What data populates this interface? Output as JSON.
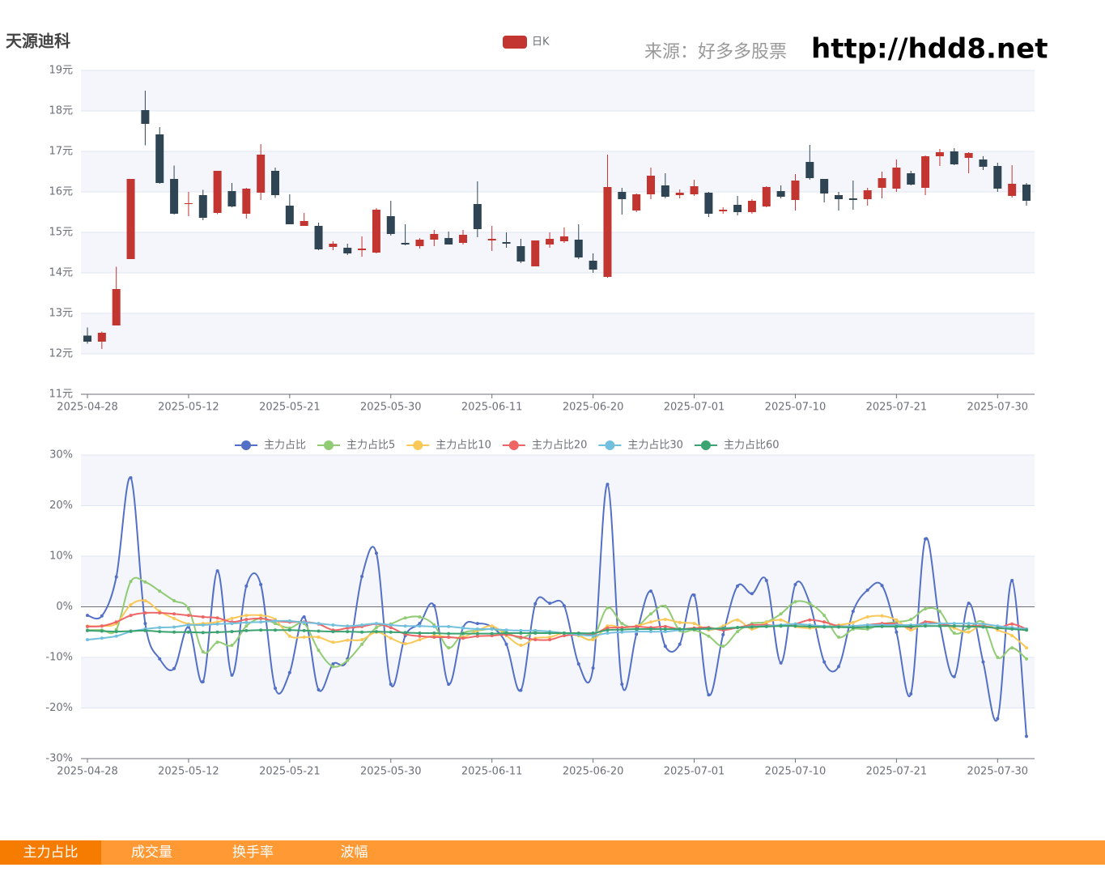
{
  "header": {
    "source": "来源：好多多股票",
    "url": "http://hdd8.net"
  },
  "tabs": [
    "主力占比",
    "成交量",
    "换手率",
    "波幅"
  ],
  "chart_data": [
    {
      "type": "candlestick",
      "title": "天源迪科",
      "categories": [
        "2025-04-28",
        null,
        null,
        null,
        null,
        null,
        null,
        "2025-05-12",
        null,
        null,
        null,
        null,
        null,
        null,
        "2025-05-21",
        null,
        null,
        null,
        null,
        null,
        null,
        "2025-05-30",
        null,
        null,
        null,
        null,
        null,
        null,
        "2025-06-11",
        null,
        null,
        null,
        null,
        null,
        null,
        "2025-06-20",
        null,
        null,
        null,
        null,
        null,
        null,
        "2025-07-01",
        null,
        null,
        null,
        null,
        null,
        null,
        "2025-07-10",
        null,
        null,
        null,
        null,
        null,
        null,
        "2025-07-21",
        null,
        null,
        null,
        null,
        null,
        null,
        "2025-07-30",
        null,
        null
      ],
      "series": [
        {
          "name": "日K",
          "color": "#c23531",
          "down_color": "#2f4554",
          "open": [
            12.45,
            12.3,
            12.7,
            14.34,
            18.02,
            17.42,
            16.32,
            15.7,
            15.92,
            15.48,
            16.02,
            15.46,
            15.98,
            16.52,
            15.66,
            15.16,
            15.16,
            14.64,
            14.62,
            14.56,
            14.5,
            15.4,
            14.74,
            14.66,
            14.82,
            14.86,
            14.74,
            15.7,
            14.8,
            14.76,
            14.66,
            14.16,
            14.7,
            14.78,
            14.82,
            14.3,
            13.9,
            16.0,
            15.54,
            15.94,
            16.16,
            15.92,
            15.94,
            15.98,
            15.52,
            15.68,
            15.5,
            15.64,
            16.02,
            15.8,
            16.74,
            16.32,
            15.92,
            15.84,
            15.82,
            16.1,
            16.08,
            16.46,
            16.1,
            16.88,
            17.0,
            16.84,
            16.8,
            16.64,
            15.9,
            16.18
          ],
          "close": [
            12.3,
            12.52,
            13.6,
            16.32,
            17.68,
            16.22,
            15.46,
            15.72,
            15.36,
            16.52,
            15.64,
            16.08,
            16.92,
            15.92,
            15.2,
            15.28,
            14.58,
            14.72,
            14.48,
            14.6,
            15.56,
            14.96,
            14.7,
            14.82,
            14.96,
            14.7,
            14.94,
            15.08,
            14.84,
            14.72,
            14.28,
            14.8,
            14.84,
            14.9,
            14.38,
            14.08,
            16.12,
            15.82,
            15.94,
            16.4,
            15.88,
            15.98,
            16.14,
            15.46,
            15.56,
            15.5,
            15.78,
            16.12,
            15.88,
            16.28,
            16.34,
            15.96,
            15.82,
            15.8,
            16.04,
            16.34,
            16.6,
            16.18,
            16.88,
            16.98,
            16.68,
            16.96,
            16.62,
            16.08,
            16.2,
            15.78
          ],
          "low": [
            12.25,
            12.12,
            12.7,
            14.34,
            17.15,
            16.2,
            15.44,
            15.4,
            15.3,
            15.45,
            15.62,
            15.34,
            15.8,
            15.85,
            15.2,
            15.16,
            14.56,
            14.56,
            14.44,
            14.4,
            14.48,
            14.92,
            14.68,
            14.6,
            14.66,
            14.7,
            14.7,
            14.88,
            14.54,
            14.62,
            14.24,
            14.16,
            14.62,
            14.74,
            14.34,
            14.0,
            13.88,
            15.44,
            15.5,
            15.82,
            15.84,
            15.84,
            15.9,
            15.38,
            15.46,
            15.42,
            15.46,
            15.62,
            15.84,
            15.54,
            16.3,
            15.74,
            15.54,
            15.56,
            15.66,
            15.84,
            16.0,
            16.16,
            15.92,
            16.64,
            16.66,
            16.46,
            16.54,
            16.0,
            15.86,
            15.66
          ],
          "high": [
            12.65,
            12.55,
            14.15,
            16.32,
            18.5,
            17.6,
            16.65,
            16.0,
            16.05,
            16.52,
            16.22,
            16.1,
            17.18,
            16.6,
            15.94,
            15.48,
            15.24,
            14.78,
            14.72,
            14.9,
            15.6,
            15.78,
            15.2,
            14.86,
            15.06,
            15.02,
            15.06,
            16.26,
            15.16,
            15.0,
            14.84,
            14.8,
            15.0,
            15.12,
            15.2,
            14.48,
            16.92,
            16.1,
            15.96,
            16.6,
            16.46,
            16.06,
            16.3,
            16.0,
            15.62,
            15.9,
            15.82,
            16.14,
            16.16,
            16.44,
            17.16,
            16.32,
            16.0,
            16.28,
            16.1,
            16.5,
            16.8,
            16.52,
            16.9,
            17.06,
            17.08,
            16.98,
            16.88,
            16.72,
            16.66,
            16.22
          ]
        }
      ],
      "ylim": [
        11,
        19
      ],
      "yticks": [
        {
          "value": 11,
          "label": "11元"
        },
        {
          "value": 12,
          "label": "12元"
        },
        {
          "value": 13,
          "label": "13元"
        },
        {
          "value": 14,
          "label": "14元"
        },
        {
          "value": 15,
          "label": "15元"
        },
        {
          "value": 16,
          "label": "16元"
        },
        {
          "value": 17,
          "label": "17元"
        },
        {
          "value": 18,
          "label": "18元"
        },
        {
          "value": 19,
          "label": "19元"
        }
      ],
      "grid": true
    },
    {
      "type": "line",
      "categories": [
        "2025-04-28",
        null,
        null,
        null,
        null,
        null,
        null,
        "2025-05-12",
        null,
        null,
        null,
        null,
        null,
        null,
        "2025-05-21",
        null,
        null,
        null,
        null,
        null,
        null,
        "2025-05-30",
        null,
        null,
        null,
        null,
        null,
        null,
        "2025-06-11",
        null,
        null,
        null,
        null,
        null,
        null,
        "2025-06-20",
        null,
        null,
        null,
        null,
        null,
        null,
        "2025-07-01",
        null,
        null,
        null,
        null,
        null,
        null,
        "2025-07-10",
        null,
        null,
        null,
        null,
        null,
        null,
        "2025-07-21",
        null,
        null,
        null,
        null,
        null,
        null,
        "2025-07-30",
        null,
        null
      ],
      "series": [
        {
          "name": "主力占比",
          "color": "#5470c6",
          "values": [
            -1.7,
            -1.8,
            5.9,
            25.5,
            -3.3,
            -10.3,
            -12.2,
            -4,
            -14.8,
            7.1,
            -13.5,
            4.1,
            4.4,
            -16.1,
            -13,
            -2,
            -16.4,
            -11.3,
            -10.3,
            6,
            10.6,
            -15.3,
            -5.7,
            -3.3,
            0.2,
            -15.3,
            -4.1,
            -3.3,
            -4,
            -7.4,
            -16.5,
            0.6,
            0.7,
            0.2,
            -11.3,
            -12.1,
            24.2,
            -15.3,
            -5.4,
            3.1,
            -7.8,
            -7.4,
            2.3,
            -17.4,
            -5.5,
            4.1,
            2.6,
            5.2,
            -11.1,
            4.4,
            0.7,
            -10.9,
            -11.8,
            -0.9,
            3.3,
            4.2,
            -5,
            -17.2,
            13.4,
            -3.3,
            -13.8,
            0.7,
            -10.9,
            -22.1,
            5.2,
            -25.6
          ]
        },
        {
          "name": "主力占比5",
          "color": "#91cc75",
          "values": [
            -4.6,
            -4.6,
            -4.5,
            5,
            4.9,
            3.1,
            1.2,
            -0.4,
            -8.9,
            -7,
            -7.6,
            -3.8,
            -2.3,
            -3.3,
            -4.2,
            -3.3,
            -8.6,
            -11.8,
            -10.6,
            -7.4,
            -4.1,
            -3.4,
            -2.2,
            -2,
            -3.6,
            -8.1,
            -5.2,
            -4.7,
            -4.4,
            -5,
            -6.2,
            -4.9,
            -4.9,
            -5.2,
            -5.7,
            -6.2,
            -0.2,
            -3.3,
            -3.9,
            -1.4,
            0.1,
            -4.7,
            -4.6,
            -5.8,
            -7.8,
            -4.9,
            -3.3,
            -3,
            -1.4,
            1,
            0.6,
            -1.7,
            -6,
            -4.4,
            -4.4,
            -3.4,
            -3,
            -2.5,
            -0.4,
            -0.9,
            -5.2,
            -4.2,
            -3.1,
            -10,
            -8.1,
            -10.3
          ]
        },
        {
          "name": "主力占比10",
          "color": "#fac858",
          "values": [
            -3.8,
            -3.8,
            -3.3,
            0.4,
            1.2,
            -0.9,
            -2.3,
            -3.4,
            -3.3,
            -3,
            -2.3,
            -1.7,
            -1.7,
            -2.5,
            -5.8,
            -6,
            -6,
            -7,
            -6.6,
            -6.5,
            -5,
            -6.2,
            -7.3,
            -6.5,
            -5.7,
            -6,
            -6,
            -4.7,
            -3.8,
            -5.7,
            -7.6,
            -6.2,
            -6,
            -5.2,
            -5.7,
            -6.5,
            -3.8,
            -4.1,
            -3.8,
            -3,
            -2.5,
            -3.1,
            -3.3,
            -4.6,
            -3.8,
            -2.6,
            -4.4,
            -3.1,
            -2.6,
            -3.9,
            -4.2,
            -3.9,
            -3.6,
            -3.1,
            -2,
            -1.8,
            -2.6,
            -4.6,
            -3,
            -3.3,
            -4.2,
            -5,
            -3.3,
            -4.6,
            -5.7,
            -8.1
          ]
        },
        {
          "name": "主力占比20",
          "color": "#ee6666",
          "values": [
            -3.9,
            -3.8,
            -3,
            -1.7,
            -1.2,
            -1.2,
            -1.4,
            -1.7,
            -2,
            -2.2,
            -3,
            -2.5,
            -2.3,
            -2.8,
            -3,
            -3,
            -3.4,
            -4.6,
            -4.2,
            -3.9,
            -3.4,
            -4.1,
            -5.4,
            -5.8,
            -6,
            -6,
            -6.2,
            -5.8,
            -5.7,
            -5.5,
            -6,
            -6.5,
            -6.5,
            -5.7,
            -5.5,
            -5.4,
            -4.2,
            -4.1,
            -3.9,
            -4.1,
            -3.9,
            -4.4,
            -4.2,
            -4.1,
            -4.6,
            -4.1,
            -3.6,
            -3.6,
            -3.8,
            -3.4,
            -2.6,
            -3,
            -3.8,
            -3.8,
            -3.6,
            -3.3,
            -3.4,
            -4.1,
            -3,
            -3.4,
            -3.8,
            -3.8,
            -3.8,
            -4.2,
            -3.4,
            -4.4
          ]
        },
        {
          "name": "主力占比30",
          "color": "#73c0de",
          "values": [
            -6.5,
            -6.2,
            -5.8,
            -4.9,
            -4.4,
            -4.1,
            -4,
            -3.6,
            -3.6,
            -3.4,
            -3.3,
            -3.1,
            -3,
            -2.8,
            -2.8,
            -3.1,
            -3.3,
            -3.6,
            -3.8,
            -3.6,
            -3.3,
            -3.6,
            -3.8,
            -3.8,
            -3.9,
            -3.9,
            -4.2,
            -4.4,
            -4.4,
            -4.6,
            -4.7,
            -4.7,
            -4.9,
            -5.2,
            -5.5,
            -5.7,
            -5.2,
            -5,
            -4.9,
            -4.9,
            -4.9,
            -4.6,
            -4.4,
            -4.4,
            -4.2,
            -4.1,
            -3.9,
            -3.8,
            -3.6,
            -3.4,
            -3.6,
            -3.8,
            -3.9,
            -3.8,
            -3.6,
            -3.6,
            -3.6,
            -3.6,
            -3.4,
            -3.3,
            -3.3,
            -3.3,
            -3.4,
            -3.8,
            -4.1,
            -4.4
          ]
        },
        {
          "name": "主力占比60",
          "color": "#3ba272",
          "values": [
            -4.7,
            -4.8,
            -4.9,
            -4.8,
            -4.7,
            -4.9,
            -5,
            -5,
            -5.1,
            -5,
            -4.9,
            -4.7,
            -4.6,
            -4.6,
            -4.6,
            -4.7,
            -4.8,
            -4.9,
            -4.9,
            -5,
            -4.9,
            -5,
            -5.1,
            -5.2,
            -5.2,
            -5.3,
            -5.3,
            -5.3,
            -5.3,
            -5.2,
            -5.2,
            -5.2,
            -5.2,
            -5.2,
            -5.2,
            -5.2,
            -4.6,
            -4.5,
            -4.4,
            -4.4,
            -4.4,
            -4.4,
            -4.4,
            -4.3,
            -4.3,
            -4.1,
            -4,
            -3.9,
            -3.8,
            -3.8,
            -3.9,
            -4,
            -4,
            -4.1,
            -4,
            -3.9,
            -3.9,
            -3.9,
            -3.8,
            -3.8,
            -3.8,
            -3.9,
            -4,
            -4.2,
            -4.4,
            -4.6
          ]
        }
      ],
      "ylim": [
        -30,
        30
      ],
      "yticks": [
        {
          "value": -30,
          "label": "-30%"
        },
        {
          "value": -20,
          "label": "-20%"
        },
        {
          "value": -10,
          "label": "-10%"
        },
        {
          "value": 0,
          "label": "0%"
        },
        {
          "value": 10,
          "label": "10%"
        },
        {
          "value": 20,
          "label": "20%"
        },
        {
          "value": 30,
          "label": "30%"
        }
      ],
      "grid": true
    }
  ]
}
